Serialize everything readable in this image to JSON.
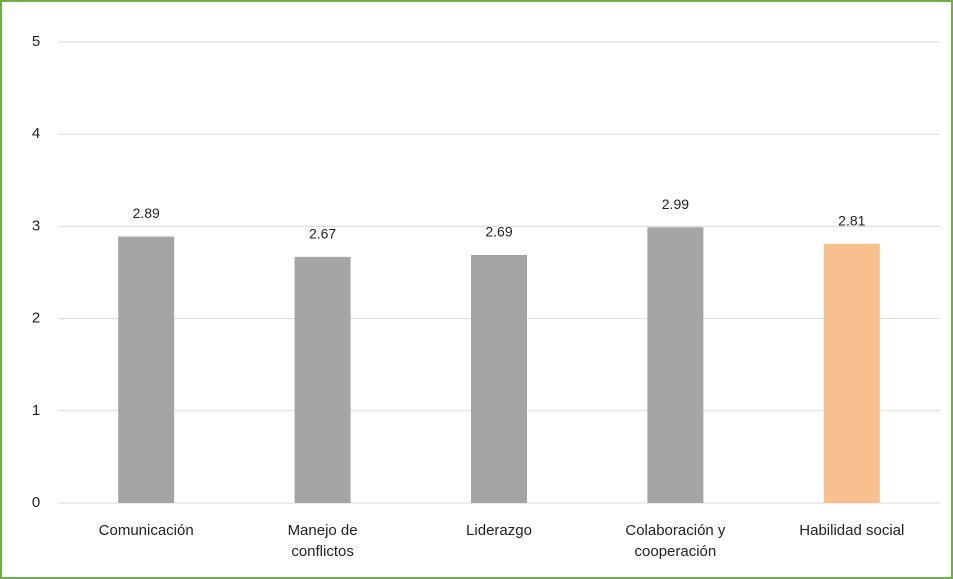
{
  "chart_data": {
    "type": "bar",
    "categories": [
      "Comunicación",
      "Manejo de conflictos",
      "Liderazgo",
      "Colaboración y cooperación",
      "Habilidad social"
    ],
    "values": [
      2.89,
      2.67,
      2.69,
      2.99,
      2.81
    ],
    "colors": [
      "#a5a5a5",
      "#a5a5a5",
      "#a5a5a5",
      "#a5a5a5",
      "#f8c08f"
    ],
    "ylim": [
      0,
      5
    ],
    "yticks": [
      0,
      1,
      2,
      3,
      4,
      5
    ],
    "grid": true
  }
}
